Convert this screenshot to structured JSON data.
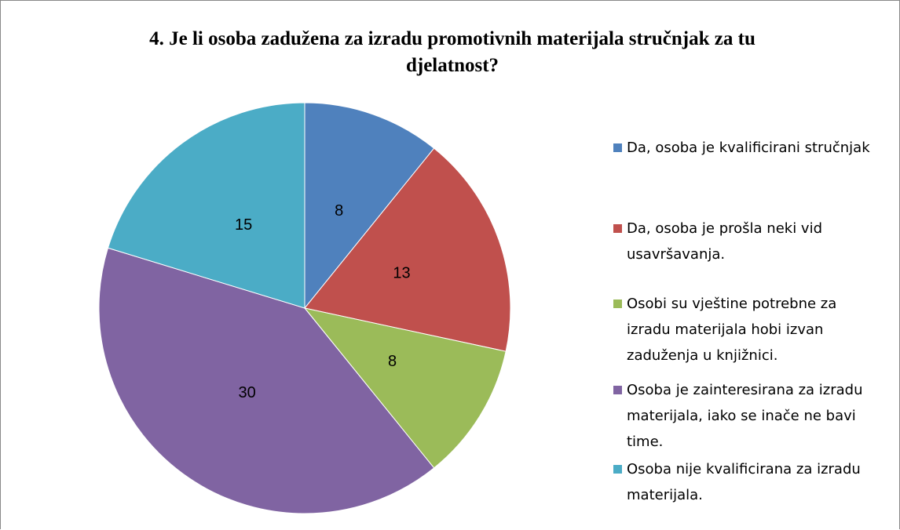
{
  "chart_data": {
    "type": "pie",
    "title": "4. Je li osoba zadužena za izradu promotivnih materijala stručnjak za tu djelatnost?",
    "categories": [
      "Da, osoba je kvalificirani stručnjak",
      "Da, osoba je prošla neki vid usavršavanja.",
      "Osobi su vještine potrebne za izradu materijala hobi izvan zaduženja u knjižnici.",
      "Osoba je zainteresirana za izradu materijala, iako se inače ne bavi time.",
      "Osoba nije kvalificirana za izradu materijala."
    ],
    "values": [
      8,
      13,
      8,
      30,
      15
    ],
    "colors": [
      "#4f81bd",
      "#c0504d",
      "#9bbb59",
      "#8064a2",
      "#4bacc6"
    ],
    "legend": "right"
  }
}
